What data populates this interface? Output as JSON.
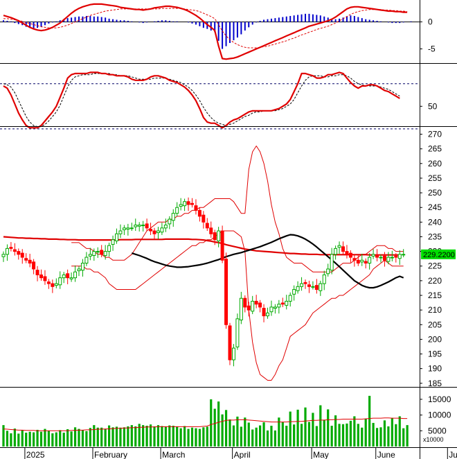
{
  "chart_data": {
    "type": "candlestick",
    "title": "",
    "months": [
      {
        "label": "2025",
        "bar": 2
      },
      {
        "label": "February",
        "bar": 20
      },
      {
        "label": "March",
        "bar": 38
      },
      {
        "label": "April",
        "bar": 57
      },
      {
        "label": "May",
        "bar": 78
      },
      {
        "label": "June",
        "bar": 95
      },
      {
        "label": "July",
        "bar": 114
      }
    ],
    "macd_panel": {
      "y_ticks": [
        0,
        -5
      ],
      "ylim": [
        -7.5,
        3.8
      ],
      "histogram": [
        0.3,
        0.2,
        0.1,
        -0.2,
        -0.4,
        -0.6,
        -0.9,
        -1.1,
        -1.2,
        -1.1,
        -0.9,
        -0.6,
        -0.3,
        -0.1,
        0.1,
        0.3,
        0.5,
        0.7,
        0.8,
        0.9,
        1.0,
        1.0,
        1.1,
        1.1,
        1.0,
        1.0,
        0.9,
        0.8,
        0.6,
        0.5,
        0.4,
        0.3,
        0.3,
        0.2,
        0.1,
        0.0,
        -0.1,
        -0.2,
        -0.1,
        0.0,
        0.1,
        0.2,
        0.3,
        0.3,
        0.2,
        0.1,
        0.1,
        0.0,
        0.0,
        -0.1,
        -0.3,
        -0.5,
        -0.8,
        -1.1,
        -1.3,
        -1.6,
        -1.9,
        -3.5,
        -5.0,
        -4.5,
        -3.9,
        -3.4,
        -2.9,
        -2.3,
        -1.6,
        -1.0,
        -0.5,
        -0.1,
        0.2,
        0.4,
        0.5,
        0.6,
        0.7,
        0.8,
        0.9,
        1.0,
        1.1,
        1.2,
        1.3,
        1.4,
        1.5,
        1.5,
        1.4,
        1.3,
        1.2,
        1.0,
        0.8,
        0.6,
        0.5,
        0.6,
        0.8,
        1.0,
        1.2,
        1.1,
        0.9,
        0.7,
        0.5,
        0.4,
        0.3,
        0.2,
        0.1,
        0.0,
        -0.1,
        -0.2,
        -0.2,
        -0.2,
        -0.1,
        0.0,
        0.1
      ],
      "macd": [
        1.2,
        1.0,
        0.8,
        0.5,
        0.2,
        -0.2,
        -0.6,
        -1.0,
        -1.3,
        -1.5,
        -1.6,
        -1.5,
        -1.3,
        -1.0,
        -0.6,
        -0.2,
        0.4,
        1.0,
        1.6,
        2.1,
        2.5,
        2.8,
        3.0,
        3.2,
        3.3,
        3.3,
        3.3,
        3.2,
        3.1,
        3.0,
        2.9,
        2.7,
        2.6,
        2.5,
        2.4,
        2.3,
        2.3,
        2.2,
        2.3,
        2.4,
        2.6,
        2.7,
        2.8,
        2.9,
        2.9,
        2.8,
        2.7,
        2.5,
        2.3,
        2.0,
        1.6,
        1.2,
        0.7,
        0.1,
        -0.5,
        -1.0,
        -1.6,
        -4.5,
        -6.8,
        -6.9,
        -6.8,
        -6.7,
        -6.5,
        -6.2,
        -5.9,
        -5.6,
        -5.3,
        -5.0,
        -4.7,
        -4.4,
        -4.1,
        -3.8,
        -3.5,
        -3.2,
        -2.9,
        -2.6,
        -2.3,
        -2.0,
        -1.7,
        -1.4,
        -1.1,
        -0.8,
        -0.6,
        -0.4,
        -0.2,
        0.0,
        0.2,
        0.5,
        0.9,
        1.4,
        1.9,
        2.4,
        2.7,
        2.8,
        2.8,
        2.7,
        2.6,
        2.5,
        2.4,
        2.3,
        2.2,
        2.1,
        2.0,
        2.0,
        1.9,
        1.9,
        1.8,
        1.8
      ],
      "signal": [
        0.6,
        0.6,
        0.5,
        0.4,
        0.3,
        0.1,
        -0.1,
        -0.3,
        -0.5,
        -0.7,
        -0.9,
        -1.0,
        -1.1,
        -1.1,
        -1.1,
        -1.0,
        -0.8,
        -0.6,
        -0.3,
        0.0,
        0.3,
        0.6,
        0.9,
        1.2,
        1.4,
        1.6,
        1.8,
        2.0,
        2.1,
        2.2,
        2.3,
        2.4,
        2.4,
        2.4,
        2.4,
        2.4,
        2.4,
        2.4,
        2.4,
        2.4,
        2.4,
        2.4,
        2.5,
        2.5,
        2.5,
        2.5,
        2.5,
        2.5,
        2.4,
        2.3,
        2.2,
        2.1,
        1.9,
        1.6,
        1.3,
        1.0,
        0.6,
        -0.5,
        -1.7,
        -2.6,
        -3.3,
        -3.8,
        -4.2,
        -4.5,
        -4.7,
        -4.8,
        -4.8,
        -4.8,
        -4.7,
        -4.6,
        -4.5,
        -4.3,
        -4.1,
        -3.9,
        -3.7,
        -3.5,
        -3.2,
        -3.0,
        -2.7,
        -2.4,
        -2.2,
        -1.9,
        -1.7,
        -1.4,
        -1.2,
        -1.0,
        -0.8,
        -0.5,
        -0.2,
        0.2,
        0.6,
        1.0,
        1.4,
        1.7,
        1.9,
        2.1,
        2.2,
        2.3,
        2.3,
        2.3,
        2.3,
        2.2,
        2.2,
        2.1,
        2.1,
        2.0,
        2.0,
        1.9
      ]
    },
    "rsi_panel": {
      "y_ticks": [
        50
      ],
      "ylim": [
        33,
        87
      ],
      "levels": [
        70,
        30
      ],
      "rsi": [
        68,
        66,
        60,
        52,
        44,
        38,
        33,
        31,
        31,
        31,
        33,
        37,
        41,
        45,
        50,
        58,
        66,
        75,
        78,
        79,
        79,
        79,
        79,
        80,
        80,
        80,
        79,
        79,
        78,
        78,
        77,
        77,
        77,
        76,
        74,
        73,
        73,
        73,
        74,
        76,
        77,
        77,
        76,
        75,
        73,
        72,
        71,
        69,
        67,
        64,
        60,
        55,
        48,
        40,
        36,
        35,
        35,
        33,
        31,
        33,
        36,
        38,
        39,
        41,
        43,
        45,
        46,
        46,
        46,
        46,
        46,
        46,
        47,
        48,
        50,
        52,
        56,
        63,
        70,
        79,
        79,
        78,
        77,
        75,
        75,
        76,
        78,
        78,
        79,
        80,
        79,
        75,
        71,
        68,
        66,
        68,
        68,
        69,
        69,
        68,
        66,
        64,
        63,
        61,
        59,
        57
      ],
      "signal": [
        70,
        69,
        67,
        62,
        55,
        48,
        41,
        36,
        33,
        32,
        32,
        34,
        37,
        41,
        45,
        51,
        59,
        67,
        73,
        76,
        77,
        78,
        78,
        78,
        79,
        79,
        79,
        79,
        79,
        78,
        78,
        77,
        77,
        77,
        76,
        75,
        74,
        74,
        74,
        74,
        75,
        75,
        75,
        75,
        74,
        73,
        72,
        71,
        69,
        67,
        64,
        60,
        55,
        49,
        44,
        40,
        37,
        35,
        34,
        33,
        34,
        35,
        37,
        39,
        41,
        42,
        44,
        45,
        45,
        46,
        46,
        46,
        46,
        47,
        48,
        50,
        52,
        56,
        62,
        68,
        73,
        76,
        77,
        77,
        77,
        76,
        76,
        77,
        77,
        78,
        78,
        77,
        75,
        72,
        70,
        69,
        68,
        68,
        68,
        68,
        67,
        66,
        65,
        63,
        61,
        59
      ]
    },
    "price_panel": {
      "y_ticks": [
        185,
        190,
        195,
        200,
        205,
        210,
        215,
        220,
        225,
        230,
        235,
        240,
        245,
        250,
        255,
        260,
        265,
        270
      ],
      "ylim": [
        184,
        272.5
      ],
      "last_price_label": "229.2200",
      "close": [
        229,
        231,
        231,
        230,
        229,
        228,
        227,
        226,
        224,
        222,
        221,
        220,
        219,
        218,
        219,
        221,
        222,
        221,
        221,
        223,
        224,
        226,
        228,
        229,
        230,
        230,
        229,
        230,
        232,
        234,
        236,
        237,
        238,
        238,
        238,
        239,
        239,
        239,
        238,
        237,
        236,
        237,
        238,
        239,
        241,
        243,
        245,
        246,
        247,
        246,
        246,
        244,
        242,
        240,
        238,
        236,
        234,
        237,
        227,
        205,
        193,
        197,
        207,
        214,
        211,
        210,
        213,
        212,
        211,
        208,
        209,
        211,
        211,
        212,
        212,
        213,
        215,
        217,
        218,
        219,
        219,
        218,
        218,
        217,
        219,
        222,
        224,
        229,
        231,
        232,
        230,
        229,
        228,
        227,
        226,
        227,
        226,
        228,
        229,
        228,
        228,
        227,
        228,
        228,
        228,
        229,
        229
      ],
      "ma_long": [
        235,
        234.9,
        234.8,
        234.7,
        234.6,
        234.6,
        234.5,
        234.5,
        234.4,
        234.4,
        234.3,
        234.3,
        234.2,
        234.2,
        234.2,
        234.1,
        234.1,
        234.0,
        234.0,
        234.0,
        233.9,
        233.9,
        233.9,
        233.9,
        233.9,
        233.9,
        233.9,
        233.9,
        233.9,
        233.9,
        233.9,
        234.0,
        234.0,
        234.0,
        234.0,
        234.1,
        234.1,
        234.1,
        234.1,
        234.1,
        234.1,
        234.1,
        234.1,
        234.2,
        234.2,
        234.2,
        234.2,
        234.2,
        234.2,
        234.2,
        234.1,
        234.1,
        234.0,
        233.9,
        233.7,
        233.5,
        233.2,
        233.0,
        232.7,
        232.3,
        232.0,
        231.7,
        231.4,
        231.1,
        230.8,
        230.6,
        230.4,
        230.2,
        230.1,
        230.0,
        229.9,
        229.8,
        229.7,
        229.6,
        229.5,
        229.4,
        229.3,
        229.3,
        229.2,
        229.1,
        229.1,
        229.0,
        229.0,
        229.0,
        228.9,
        228.9,
        228.9,
        228.9,
        228.9,
        228.9,
        228.9,
        228.9,
        228.9,
        228.9,
        228.9,
        228.9,
        228.9,
        228.8,
        228.8,
        228.8,
        228.8,
        228.8,
        228.8,
        228.8,
        228.8,
        228.8
      ],
      "ma_mid": [
        229.4,
        229.0,
        228.6,
        228.1,
        227.6,
        227.0,
        226.5,
        226.1,
        225.7,
        225.3,
        225.0,
        224.8,
        224.6,
        224.6,
        224.7,
        224.8,
        225.0,
        225.2,
        225.4,
        225.7,
        226.0,
        226.4,
        226.8,
        227.2,
        227.7,
        228.2,
        228.6,
        229.0,
        229.3,
        229.6,
        230.0,
        230.4,
        230.8,
        231.2,
        231.6,
        232.1,
        232.6,
        233.1,
        233.7,
        234.3,
        234.8,
        235.3,
        235.7,
        235.6,
        235.3,
        234.8,
        234.2,
        233.4,
        232.5,
        231.5,
        230.4,
        229.3,
        228.2,
        227.1,
        226.0,
        224.8,
        223.6,
        222.4,
        221.2,
        220.0,
        219.2,
        218.4,
        217.9,
        217.6,
        217.6,
        217.9,
        218.4,
        219.0,
        219.6,
        220.3,
        221.0,
        221.5,
        221.0
      ],
      "ma_mid_start": 34,
      "bb_upper": [
        233,
        233,
        233,
        232,
        231,
        231,
        230,
        229,
        229,
        228,
        228,
        227,
        227,
        227,
        227,
        228,
        229,
        231,
        233,
        235,
        237,
        238,
        239,
        240,
        240,
        240,
        241,
        241,
        242,
        242,
        243,
        243,
        244,
        244,
        245,
        245,
        246,
        247,
        248,
        248,
        248,
        248,
        248,
        247,
        245,
        243,
        243,
        258,
        264,
        266,
        264,
        260,
        254,
        246,
        240,
        236,
        231,
        228,
        227,
        226,
        226,
        226,
        225,
        224,
        223,
        223,
        223,
        223,
        223,
        223,
        224,
        225,
        226,
        226,
        226,
        227,
        228,
        229,
        229,
        230,
        231,
        232,
        232,
        232,
        231,
        231,
        230,
        230,
        230
      ],
      "bb_mid": [
        229,
        229,
        229,
        229,
        228,
        228,
        227,
        227,
        226,
        225,
        224,
        223,
        223,
        222,
        222,
        222,
        223,
        224,
        225,
        226,
        228,
        229,
        230,
        231,
        232,
        233,
        234,
        234,
        235,
        236,
        237,
        237,
        238,
        238,
        239,
        240,
        241,
        241,
        242,
        243,
        243,
        243,
        243,
        242,
        241,
        240,
        238,
        234,
        231,
        229,
        225,
        221,
        217,
        213,
        211,
        209,
        207,
        207,
        207,
        208,
        209,
        210,
        211,
        212,
        213,
        214,
        215,
        216,
        217,
        218,
        219,
        220,
        221,
        222,
        223,
        224,
        225,
        225,
        226,
        227,
        227,
        228,
        228,
        228,
        228,
        228,
        228,
        228,
        228
      ],
      "bb_lower": [
        225,
        225,
        225,
        225,
        224,
        224,
        223,
        223,
        222,
        221,
        219,
        218,
        217,
        217,
        217,
        217,
        217,
        217,
        218,
        219,
        220,
        221,
        222,
        223,
        224,
        225,
        226,
        227,
        228,
        229,
        230,
        231,
        232,
        232,
        233,
        233,
        234,
        234,
        235,
        236,
        237,
        237,
        237,
        237,
        236,
        235,
        230,
        210,
        199,
        192,
        188,
        187,
        186,
        186,
        188,
        191,
        193,
        197,
        201,
        202,
        203,
        204,
        205,
        207,
        209,
        210,
        211,
        212,
        213,
        214,
        214,
        215,
        215,
        216,
        217,
        218,
        219,
        220,
        221,
        222,
        224,
        225,
        226,
        227,
        226,
        225,
        225,
        225,
        225
      ]
    },
    "volume_panel": {
      "y_ticks": [
        5000,
        10000,
        15000
      ],
      "ylim": [
        0,
        18500
      ],
      "unit_label": "x10000",
      "volume": [
        6800,
        5000,
        4200,
        5700,
        4100,
        5200,
        4400,
        4700,
        4500,
        5300,
        4700,
        5600,
        5000,
        4200,
        4500,
        5200,
        4400,
        5500,
        4800,
        6100,
        5600,
        5200,
        4900,
        5900,
        6800,
        6000,
        6000,
        5500,
        6700,
        6100,
        6300,
        6000,
        6100,
        6400,
        6800,
        6400,
        7200,
        6800,
        6600,
        7000,
        6400,
        6800,
        6500,
        6300,
        6700,
        6600,
        6300,
        5800,
        6500,
        5600,
        6000,
        5800,
        5600,
        6100,
        6300,
        15000,
        12000,
        14300,
        10200,
        11600,
        8600,
        6700,
        9500,
        6300,
        9200,
        7600,
        5400,
        6000,
        6700,
        7700,
        5100,
        6600,
        5100,
        9200,
        7700,
        6600,
        11100,
        7000,
        11700,
        7200,
        12400,
        7800,
        10700,
        6500,
        13100,
        8500,
        11800,
        6600,
        9900,
        7200,
        7100,
        7300,
        8200,
        9600,
        7200,
        6000,
        8800,
        16100,
        7500,
        5900,
        6100,
        8300,
        6400,
        9100,
        7100,
        9600,
        5800,
        6800
      ],
      "volume_ma": [
        5600,
        5500,
        5400,
        5300,
        5200,
        5200,
        5100,
        5100,
        5100,
        5000,
        5000,
        5000,
        5000,
        5000,
        5000,
        5000,
        5000,
        5000,
        5100,
        5100,
        5200,
        5200,
        5300,
        5300,
        5400,
        5500,
        5500,
        5600,
        5600,
        5700,
        5800,
        5800,
        5900,
        5900,
        6000,
        6000,
        6100,
        6100,
        6200,
        6200,
        6200,
        6300,
        6300,
        6300,
        6300,
        6300,
        6300,
        6300,
        6300,
        6300,
        6300,
        6300,
        6300,
        6400,
        6500,
        7000,
        7300,
        7700,
        8000,
        8300,
        8400,
        8400,
        8500,
        8500,
        8500,
        8400,
        8300,
        8200,
        8100,
        8000,
        7900,
        7800,
        7800,
        7800,
        7800,
        7800,
        7900,
        7900,
        8000,
        8000,
        8100,
        8200,
        8300,
        8300,
        8400,
        8400,
        8500,
        8500,
        8600,
        8600,
        8700,
        8700,
        8700,
        8700,
        8700,
        8700,
        8800,
        8900,
        9000,
        9000,
        9000,
        9100,
        9100,
        9000,
        9000,
        9000,
        8900,
        8900
      ]
    },
    "colors": {
      "up": "#00aa00",
      "down": "#ff0000",
      "ma_long": "#e00000",
      "ma_mid": "#000000",
      "bands": "#e00000",
      "macd_hist": "#0000cc",
      "price_tag": "#00dd00"
    }
  }
}
